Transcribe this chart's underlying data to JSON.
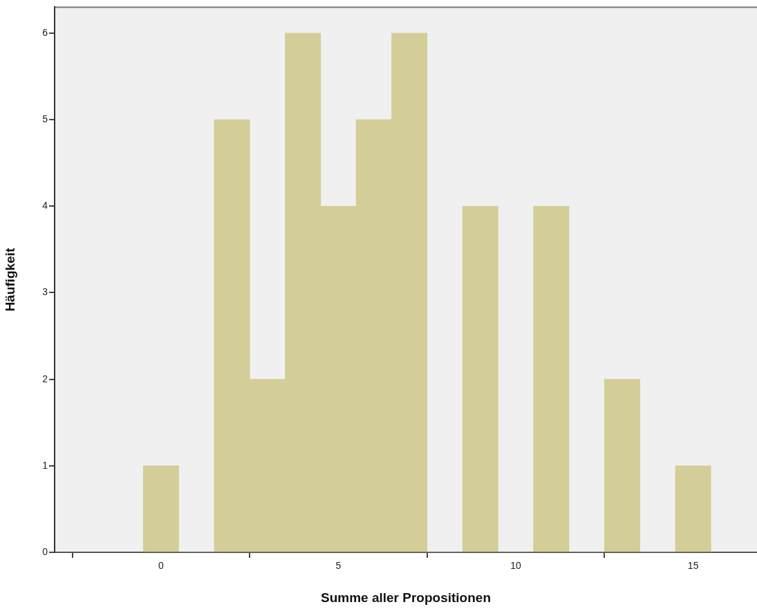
{
  "chart_data": {
    "type": "histogram",
    "xlabel": "Summe aller Propositionen",
    "ylabel": "Häufigkeit",
    "bins": [
      -0.5,
      0.5,
      1.5,
      2.5,
      3.5,
      4.5,
      5.5,
      6.5,
      7.5,
      8.5,
      9.5,
      10.5,
      11.5,
      12.5,
      13.5,
      14.5,
      15.5
    ],
    "values": [
      1,
      0,
      5,
      2,
      6,
      4,
      5,
      6,
      0,
      4,
      0,
      4,
      0,
      2,
      0,
      1
    ],
    "color": "#d3ce97",
    "xlim": [
      -3,
      16.8
    ],
    "xticks": [
      0,
      5,
      10,
      15
    ],
    "ylim": [
      0,
      6.3
    ],
    "yticks": [
      0,
      1,
      2,
      3,
      4,
      5,
      6
    ],
    "grid": false,
    "legend": false
  }
}
